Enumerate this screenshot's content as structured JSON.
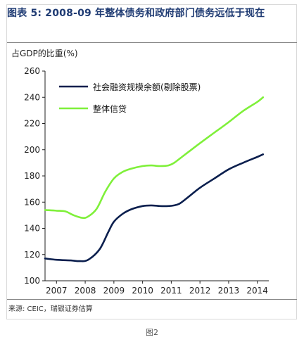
{
  "figure": {
    "title": "图表 5: 2008-09 年整体债务和政府部门债务远低于现在",
    "source": "来源: CEIC，瑞银证券估算",
    "caption": "图2"
  },
  "chart_data": {
    "type": "line",
    "ylabel": "占GDP的比重(%)",
    "ylim": [
      100,
      260
    ],
    "yticks": [
      100,
      120,
      140,
      160,
      180,
      200,
      220,
      240,
      260
    ],
    "xticks": [
      "2007",
      "2008",
      "2009",
      "2010",
      "2011",
      "2012",
      "2013",
      "2014"
    ],
    "xlim": [
      2006.6,
      2014.4
    ],
    "grid": false,
    "legend_position": "top-left",
    "series": [
      {
        "name": "社会融资规模余额(剔除股票)",
        "color": "#0b1f4e",
        "x": [
          2006.6,
          2007.0,
          2007.5,
          2007.8,
          2008.1,
          2008.5,
          2008.8,
          2009.0,
          2009.3,
          2009.6,
          2010.0,
          2010.3,
          2010.6,
          2010.9,
          2011.1,
          2011.3,
          2011.6,
          2012.0,
          2012.5,
          2013.0,
          2013.5,
          2014.0,
          2014.2
        ],
        "y": [
          117,
          116,
          115.5,
          115,
          116,
          124,
          137,
          145,
          151,
          154.5,
          157,
          157.5,
          157,
          157,
          157.5,
          159,
          164,
          171,
          178,
          185,
          190,
          194.5,
          196.5
        ]
      },
      {
        "name": "整体信贷",
        "color": "#7ff03a",
        "x": [
          2006.6,
          2007.0,
          2007.3,
          2007.6,
          2007.9,
          2008.1,
          2008.4,
          2008.7,
          2009.0,
          2009.3,
          2009.6,
          2010.0,
          2010.3,
          2010.6,
          2010.9,
          2011.1,
          2011.4,
          2011.7,
          2012.0,
          2012.5,
          2013.0,
          2013.5,
          2014.0,
          2014.2
        ],
        "y": [
          154,
          153.5,
          153,
          150,
          148,
          149,
          155,
          168,
          178,
          183,
          185.5,
          187.5,
          188,
          187.5,
          188,
          190,
          195,
          200,
          205,
          213,
          221,
          229.5,
          236.5,
          240
        ]
      }
    ]
  }
}
